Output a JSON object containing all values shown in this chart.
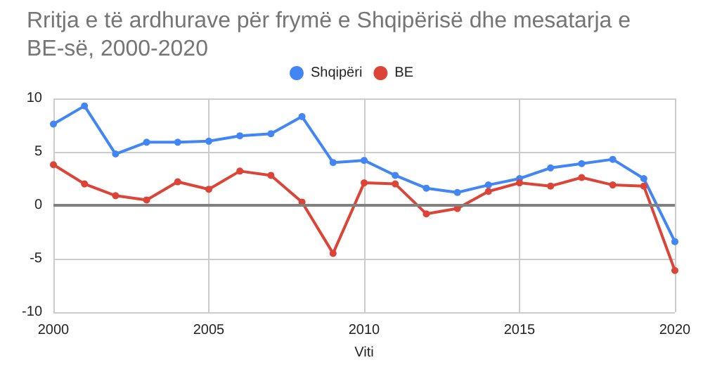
{
  "chart_data": {
    "type": "line",
    "title": "Rritja e të ardhurave për frymë e Shqipërisë dhe mesatarja e BE-së, 2000-2020",
    "xlabel": "Viti",
    "x": [
      2000,
      2001,
      2002,
      2003,
      2004,
      2005,
      2006,
      2007,
      2008,
      2009,
      2010,
      2011,
      2012,
      2013,
      2014,
      2015,
      2016,
      2017,
      2018,
      2019,
      2020
    ],
    "series": [
      {
        "name": "Shqipëri",
        "color": "#4285f4",
        "values": [
          7.6,
          9.3,
          4.8,
          5.9,
          5.9,
          6.0,
          6.5,
          6.7,
          8.3,
          4.0,
          4.2,
          2.8,
          1.6,
          1.2,
          1.9,
          2.5,
          3.5,
          3.9,
          4.3,
          2.5,
          -3.4
        ]
      },
      {
        "name": "BE",
        "color": "#db4437",
        "values": [
          3.8,
          2.0,
          0.9,
          0.5,
          2.2,
          1.5,
          3.2,
          2.8,
          0.3,
          -4.5,
          2.1,
          2.0,
          -0.8,
          -0.3,
          1.3,
          2.1,
          1.8,
          2.6,
          1.9,
          1.8,
          -6.1
        ]
      }
    ],
    "xlim": [
      2000,
      2020
    ],
    "xticks": [
      2000,
      2005,
      2010,
      2015,
      2020
    ],
    "ylim": [
      -10,
      10
    ],
    "yticks": [
      -10,
      -5,
      0,
      5,
      10
    ],
    "ref_lines": [
      {
        "axis": "y",
        "value": 0,
        "color": "#808080"
      }
    ],
    "grid": true,
    "legend": "top",
    "marker": "circle",
    "line_style": "solid"
  }
}
